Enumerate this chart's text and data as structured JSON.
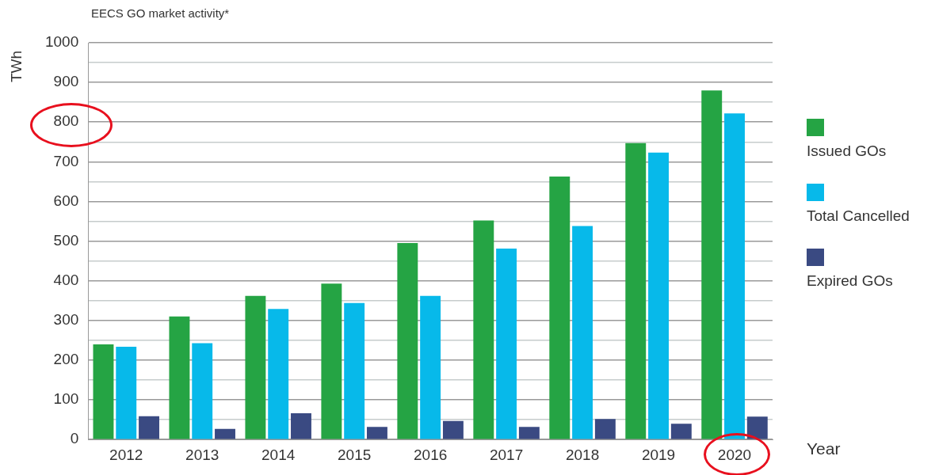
{
  "chart_data": {
    "type": "bar",
    "title": "EECS GO market activity*",
    "xlabel": "Year",
    "ylabel": "TWh",
    "categories": [
      "2012",
      "2013",
      "2014",
      "2015",
      "2016",
      "2017",
      "2018",
      "2019",
      "2020"
    ],
    "series": [
      {
        "name": "Issued GOs",
        "color": "#25a444",
        "values": [
          240,
          310,
          362,
          393,
          495,
          552,
          663,
          747,
          880
        ]
      },
      {
        "name": "Total Cancelled",
        "color": "#07b9ea",
        "values": [
          234,
          243,
          329,
          344,
          362,
          481,
          538,
          723,
          822
        ]
      },
      {
        "name": "Expired GOs",
        "color": "#3a4a82",
        "values": [
          59,
          27,
          66,
          32,
          47,
          32,
          52,
          40,
          58
        ]
      }
    ],
    "ylim": [
      0,
      1000
    ],
    "yticks": [
      0,
      {
        "value": 50,
        "label": null
      },
      100,
      {
        "value": 150,
        "label": null
      },
      200,
      {
        "value": 250,
        "label": null
      },
      300,
      {
        "value": 350,
        "label": null
      },
      400,
      {
        "value": 450,
        "label": null
      },
      500,
      {
        "value": 550,
        "label": null
      },
      600,
      {
        "value": 650,
        "label": null
      },
      700,
      {
        "value": 750,
        "label": null
      },
      800,
      {
        "value": 850,
        "label": null
      },
      900,
      {
        "value": 950,
        "label": null
      },
      1000
    ],
    "grid": "y",
    "legend": "right"
  }
}
